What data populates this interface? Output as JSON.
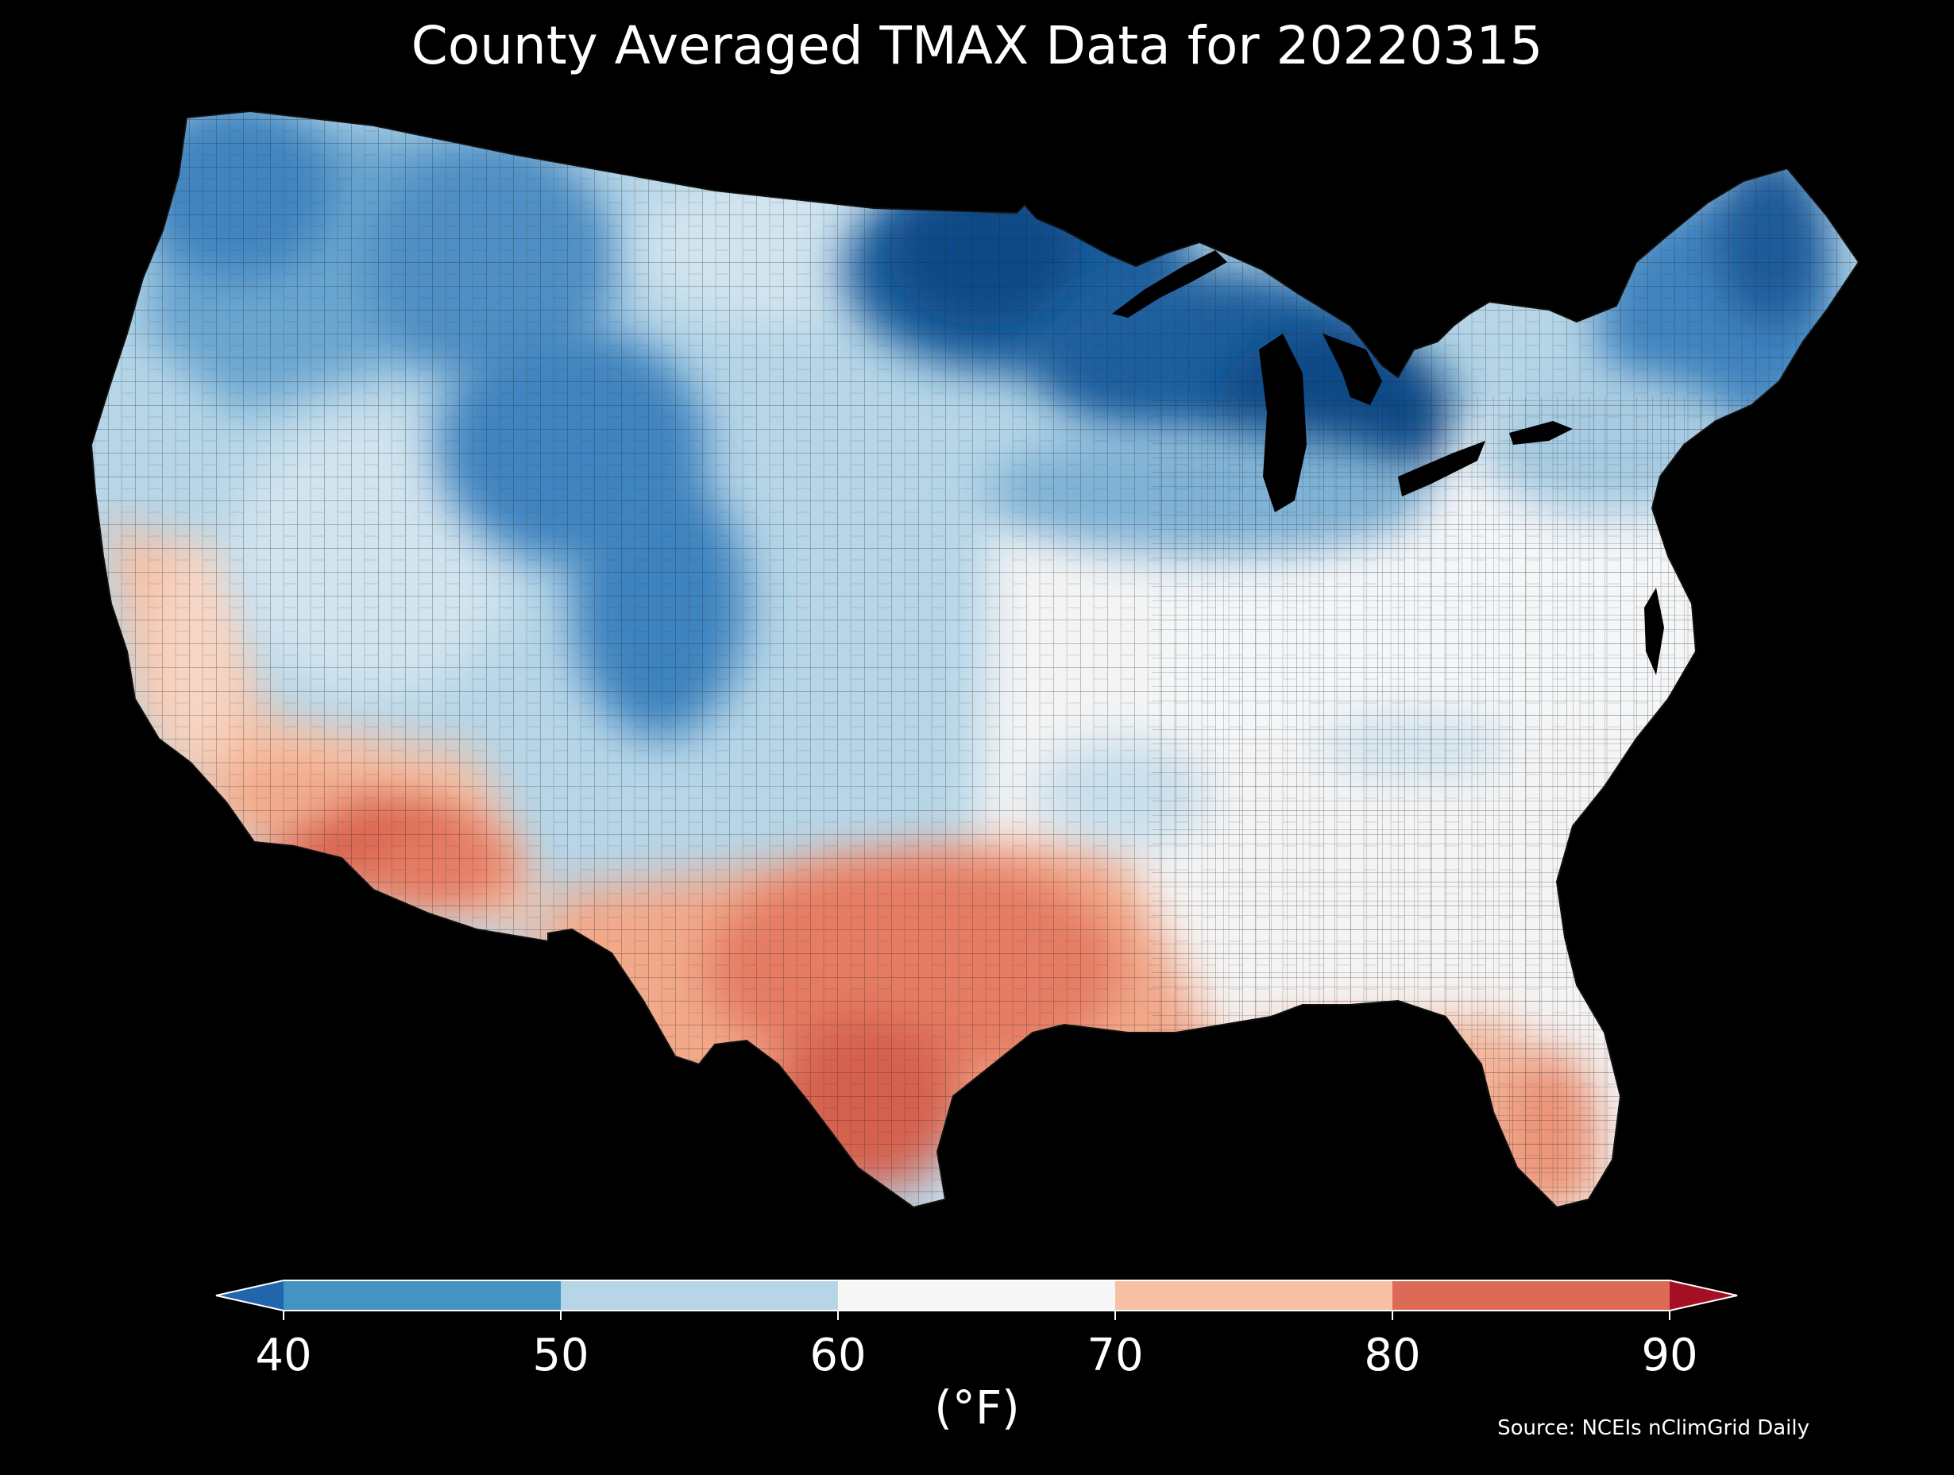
{
  "title": "County Averaged TMAX Data for 20220315",
  "source": "Source: NCEIs nClimGrid Daily",
  "colorbar": {
    "unit": "(°F)",
    "ticks": [
      "40",
      "50",
      "60",
      "70",
      "80",
      "90"
    ],
    "bins": [
      {
        "range": "<40",
        "color": "#2166ac"
      },
      {
        "range": "40-50",
        "color": "#4393c3"
      },
      {
        "range": "50-60",
        "color": "#b6d6e8"
      },
      {
        "range": "60-70",
        "color": "#f7f7f7"
      },
      {
        "range": "70-80",
        "color": "#f7c0a3"
      },
      {
        "range": "80-90",
        "color": "#dc6a57"
      },
      {
        "range": ">90",
        "color": "#a50f24"
      }
    ]
  },
  "map": {
    "region": "Contiguous United States",
    "variable": "TMAX",
    "date": "20220315",
    "pattern": [
      {
        "area": "Northern Plains / Upper Midwest / Northern Maine",
        "color": "#0d4a87"
      },
      {
        "area": "Northern Rockies / Pacific Northwest",
        "color": "#3f84c0"
      },
      {
        "area": "Great Basin / Central Plains",
        "color": "#b6d6e8"
      },
      {
        "area": "Ohio Valley / Mid-Atlantic / Southeast interior",
        "color": "#f7f7f7"
      },
      {
        "area": "Southern Plains / Gulf Coast / Florida",
        "color": "#f2a98a"
      },
      {
        "area": "Southern Arizona / South Texas",
        "color": "#d5604d"
      }
    ]
  }
}
